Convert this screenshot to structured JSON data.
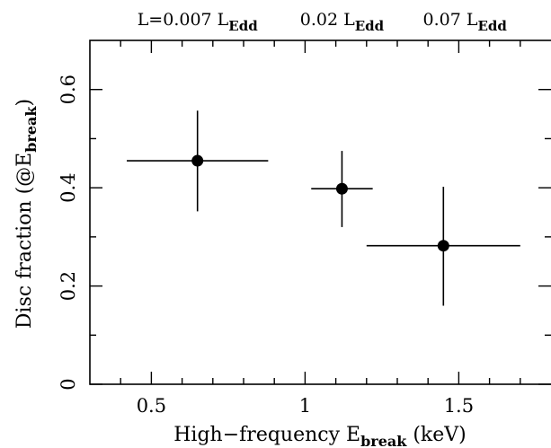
{
  "chart_data": {
    "type": "scatter",
    "title": "",
    "xlabel": "High−frequency E",
    "xlabel_sub": "break",
    "xlabel_suffix": " (keV)",
    "ylabel": "Disc fraction (@E",
    "ylabel_sub": "break",
    "ylabel_suffix": ")",
    "xlim": [
      0.3,
      1.8
    ],
    "ylim": [
      0,
      0.7
    ],
    "x_major_ticks": [
      0.5,
      1,
      1.5
    ],
    "x_tick_labels": [
      "0.5",
      "1",
      "1.5"
    ],
    "x_minor_ticks": [
      0.4,
      0.6,
      0.7,
      0.8,
      0.9,
      1.1,
      1.2,
      1.3,
      1.4,
      1.6,
      1.7
    ],
    "y_major_ticks": [
      0,
      0.2,
      0.4,
      0.6
    ],
    "y_tick_labels": [
      "0",
      "0.2",
      "0.4",
      "0.6"
    ],
    "y_minor_ticks": [
      0.1,
      0.3,
      0.5
    ],
    "grid": false,
    "points": [
      {
        "x": 0.65,
        "y": 0.455,
        "x_lo": 0.42,
        "x_hi": 0.88,
        "y_lo": 0.352,
        "y_hi": 0.557
      },
      {
        "x": 1.12,
        "y": 0.398,
        "x_lo": 1.02,
        "x_hi": 1.22,
        "y_lo": 0.32,
        "y_hi": 0.475
      },
      {
        "x": 1.45,
        "y": 0.282,
        "x_lo": 1.2,
        "x_hi": 1.7,
        "y_lo": 0.16,
        "y_hi": 0.402
      }
    ],
    "top_annotations": [
      {
        "x": 0.65,
        "prefix": "L=0.007 L",
        "sub": "Edd"
      },
      {
        "x": 1.12,
        "prefix": "0.02 L",
        "sub": "Edd"
      },
      {
        "x": 1.52,
        "prefix": "0.07 L",
        "sub": "Edd"
      }
    ]
  }
}
